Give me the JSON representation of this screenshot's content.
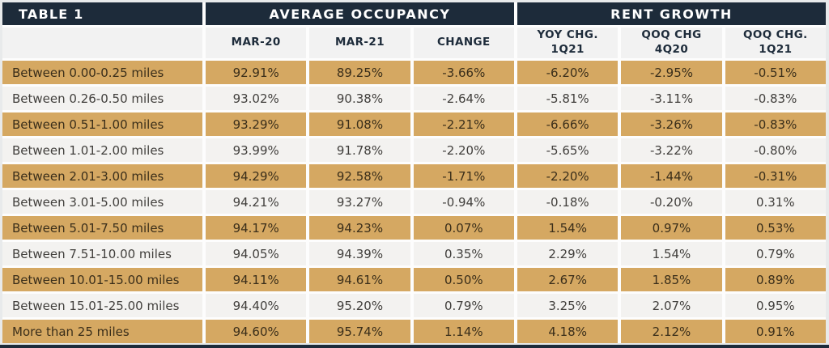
{
  "chart_data": {
    "type": "table",
    "title": "TABLE 1",
    "group_headers": [
      {
        "label": "AVERAGE OCCUPANCY",
        "span": 3
      },
      {
        "label": "RENT GROWTH",
        "span": 3
      }
    ],
    "column_headers": [
      {
        "line1": "MAR-20",
        "line2": ""
      },
      {
        "line1": "MAR-21",
        "line2": ""
      },
      {
        "line1": "CHANGE",
        "line2": ""
      },
      {
        "line1": "YOY CHG.",
        "line2": "1Q21"
      },
      {
        "line1": "QOQ CHG",
        "line2": "4Q20"
      },
      {
        "line1": "QOQ CHG.",
        "line2": "1Q21"
      }
    ],
    "rows": [
      {
        "label": "Between 0.00-0.25 miles",
        "values": [
          "92.91%",
          "89.25%",
          "-3.66%",
          "-6.20%",
          "-2.95%",
          "-0.51%"
        ],
        "highlight": true
      },
      {
        "label": "Between 0.26-0.50 miles",
        "values": [
          "93.02%",
          "90.38%",
          "-2.64%",
          "-5.81%",
          "-3.11%",
          "-0.83%"
        ],
        "highlight": false
      },
      {
        "label": "Between 0.51-1.00 miles",
        "values": [
          "93.29%",
          "91.08%",
          "-2.21%",
          "-6.66%",
          "-3.26%",
          "-0.83%"
        ],
        "highlight": true
      },
      {
        "label": "Between 1.01-2.00 miles",
        "values": [
          "93.99%",
          "91.78%",
          "-2.20%",
          "-5.65%",
          "-3.22%",
          "-0.80%"
        ],
        "highlight": false
      },
      {
        "label": "Between 2.01-3.00 miles",
        "values": [
          "94.29%",
          "92.58%",
          "-1.71%",
          "-2.20%",
          "-1.44%",
          "-0.31%"
        ],
        "highlight": true
      },
      {
        "label": "Between 3.01-5.00 miles",
        "values": [
          "94.21%",
          "93.27%",
          "-0.94%",
          "-0.18%",
          "-0.20%",
          "0.31%"
        ],
        "highlight": false
      },
      {
        "label": "Between 5.01-7.50 miles",
        "values": [
          "94.17%",
          "94.23%",
          "0.07%",
          "1.54%",
          "0.97%",
          "0.53%"
        ],
        "highlight": true
      },
      {
        "label": "Between 7.51-10.00 miles",
        "values": [
          "94.05%",
          "94.39%",
          "0.35%",
          "2.29%",
          "1.54%",
          "0.79%"
        ],
        "highlight": false
      },
      {
        "label": "Between 10.01-15.00 miles",
        "values": [
          "94.11%",
          "94.61%",
          "0.50%",
          "2.67%",
          "1.85%",
          "0.89%"
        ],
        "highlight": true
      },
      {
        "label": "Between 15.01-25.00 miles",
        "values": [
          "94.40%",
          "95.20%",
          "0.79%",
          "3.25%",
          "2.07%",
          "0.95%"
        ],
        "highlight": false
      },
      {
        "label": "More than 25 miles",
        "values": [
          "94.60%",
          "95.74%",
          "1.14%",
          "4.18%",
          "2.12%",
          "0.91%"
        ],
        "highlight": true
      }
    ]
  },
  "colors": {
    "header_navy": "#1d2b3a",
    "row_tan": "#d5a862",
    "row_light": "#f3f2f0",
    "subheader_bg": "#f2f2f2",
    "header_text": "#ffffff",
    "subheader_text": "#1d2b3a",
    "tan_row_text": "#3a2e1a",
    "light_row_text": "#413f3c",
    "frame": "#e8eaeb"
  }
}
